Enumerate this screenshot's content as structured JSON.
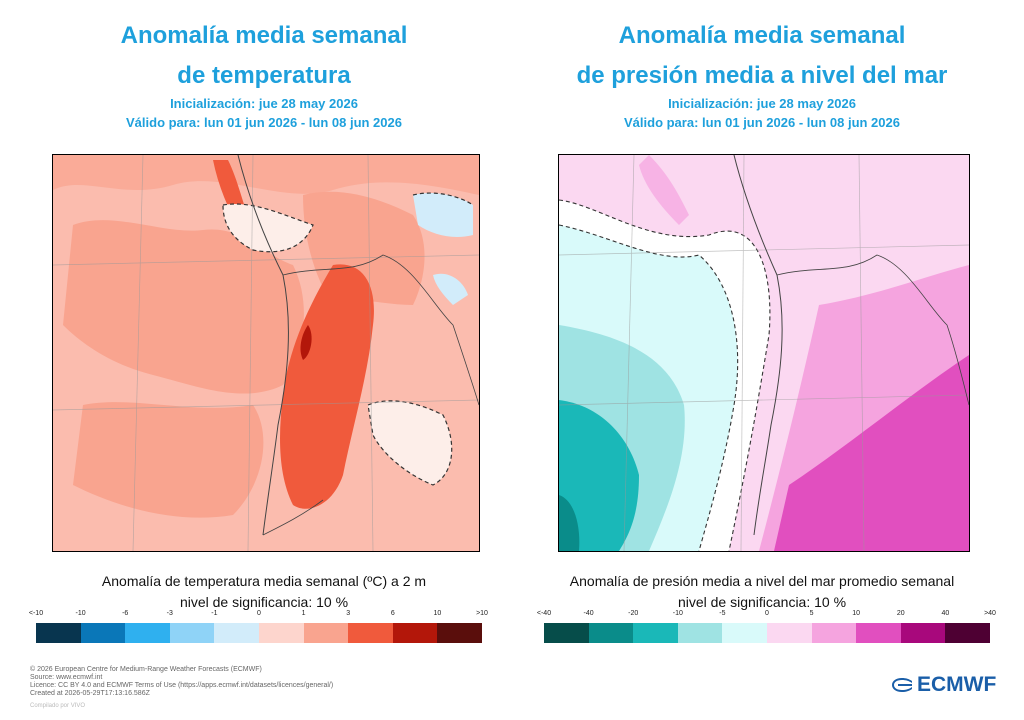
{
  "left": {
    "title_line1": "Anomalía media semanal",
    "title_line2": "de temperatura",
    "init": "Inicialización: jue 28 may 2026",
    "valid": "Válido para: lun 01 jun 2026 - lun 08 jun 2026",
    "caption_line1": "Anomalía de temperatura media semanal (ºC) a 2 m",
    "caption_line2": "nivel de significancia: 10 %",
    "legend": {
      "ticks": [
        "<-10",
        "-10",
        "-6",
        "-3",
        "-1",
        "0",
        "1",
        "3",
        "6",
        "10",
        ">10"
      ],
      "colors": [
        "#08354f",
        "#0a77b8",
        "#2fb0ef",
        "#8fd3f7",
        "#d2ecfa",
        "#fdd5cd",
        "#f9a48f",
        "#f05a3c",
        "#b3170a",
        "#5a0e0c"
      ]
    }
  },
  "right": {
    "title_line1": "Anomalía media semanal",
    "title_line2": "de presión media a nivel del mar",
    "init": "Inicialización: jue 28 may 2026",
    "valid": "Válido para: lun 01 jun 2026 - lun 08 jun 2026",
    "caption_line1": "Anomalía de presión media a nivel del mar promedio semanal",
    "caption_line2": "nivel de significancia: 10 %",
    "legend": {
      "ticks": [
        "<-40",
        "-40",
        "-20",
        "-10",
        "-5",
        "0",
        "5",
        "10",
        "20",
        "40",
        ">40"
      ],
      "colors": [
        "#064d4a",
        "#0a8c8a",
        "#1ab8b8",
        "#9fe3e3",
        "#d9fafa",
        "#fbd8f1",
        "#f5a4df",
        "#e14fbf",
        "#a8087c",
        "#4e0033"
      ]
    }
  },
  "footer": {
    "line1": "© 2026 European Centre for Medium-Range Weather Forecasts (ECMWF)",
    "line2": "Source: www.ecmwf.int",
    "line3": "Licence: CC BY 4.0 and ECMWF Terms of Use (https://apps.ecmwf.int/datasets/licences/general/)",
    "line4": "Created at 2026-05-29T17:13:16.586Z",
    "compiled": "Compilado por VIVO"
  },
  "logo_text": "ECMWF"
}
